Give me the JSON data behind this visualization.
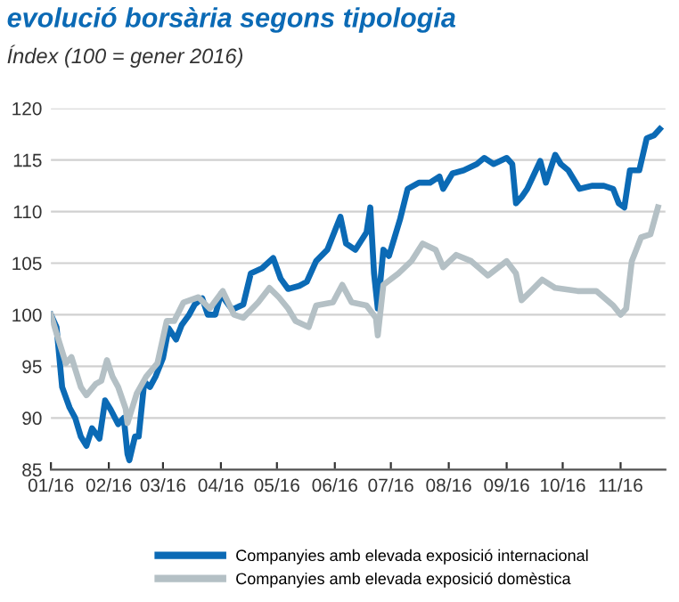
{
  "chart_data": {
    "type": "line",
    "title": "evolució borsària segons tipologia",
    "subtitle": "Índex (100 = gener 2016)",
    "xlim": [
      "2016-01-01",
      "2016-11-25"
    ],
    "xticks": [
      {
        "value": "2016-01-01",
        "label": "01/16"
      },
      {
        "value": "2016-02-01",
        "label": "02/16"
      },
      {
        "value": "2016-03-01",
        "label": "03/16"
      },
      {
        "value": "2016-04-01",
        "label": "04/16"
      },
      {
        "value": "2016-05-01",
        "label": "05/16"
      },
      {
        "value": "2016-06-01",
        "label": "06/16"
      },
      {
        "value": "2016-07-01",
        "label": "07/16"
      },
      {
        "value": "2016-08-01",
        "label": "08/16"
      },
      {
        "value": "2016-09-01",
        "label": "09/16"
      },
      {
        "value": "2016-10-01",
        "label": "10/16"
      },
      {
        "value": "2016-11-01",
        "label": "11/16"
      }
    ],
    "ylim": [
      85,
      120
    ],
    "yticks": [
      85,
      90,
      95,
      100,
      105,
      110,
      115,
      120
    ],
    "grid": "y",
    "legend": "bottom",
    "marker": "none",
    "line_style": "solid",
    "series": [
      {
        "name": "Companyies amb elevada exposició internacional",
        "color": "#0b6ab5",
        "x": [
          "2016-01-01",
          "2016-01-04",
          "2016-01-07",
          "2016-01-11",
          "2016-01-14",
          "2016-01-17",
          "2016-01-20",
          "2016-01-23",
          "2016-01-27",
          "2016-01-30",
          "2016-02-02",
          "2016-02-06",
          "2016-02-09",
          "2016-02-11",
          "2016-02-12",
          "2016-02-15",
          "2016-02-17",
          "2016-02-20",
          "2016-02-23",
          "2016-02-26",
          "2016-03-01",
          "2016-03-04",
          "2016-03-08",
          "2016-03-11",
          "2016-03-15",
          "2016-03-18",
          "2016-03-22",
          "2016-03-25",
          "2016-03-29",
          "2016-04-01",
          "2016-04-07",
          "2016-04-13",
          "2016-04-17",
          "2016-04-23",
          "2016-04-29",
          "2016-05-03",
          "2016-05-07",
          "2016-05-13",
          "2016-05-17",
          "2016-05-22",
          "2016-05-28",
          "2016-06-04",
          "2016-06-07",
          "2016-06-12",
          "2016-06-18",
          "2016-06-20",
          "2016-06-22",
          "2016-06-24",
          "2016-06-27",
          "2016-06-30",
          "2016-07-03",
          "2016-07-06",
          "2016-07-10",
          "2016-07-16",
          "2016-07-22",
          "2016-07-27",
          "2016-07-29",
          "2016-08-03",
          "2016-08-09",
          "2016-08-16",
          "2016-08-20",
          "2016-08-25",
          "2016-09-01",
          "2016-09-04",
          "2016-09-06",
          "2016-09-09",
          "2016-09-12",
          "2016-09-19",
          "2016-09-22",
          "2016-09-27",
          "2016-09-30",
          "2016-10-04",
          "2016-10-10",
          "2016-10-17",
          "2016-10-23",
          "2016-10-28",
          "2016-10-31",
          "2016-11-03",
          "2016-11-06",
          "2016-11-11",
          "2016-11-15",
          "2016-11-19",
          "2016-11-22"
        ],
        "values": [
          100,
          98.8,
          93,
          91,
          90,
          88.2,
          87.3,
          89,
          88,
          91.7,
          90.8,
          89.4,
          90,
          86.5,
          85.9,
          88.2,
          88.2,
          93.5,
          93,
          94,
          95.8,
          98.7,
          97.6,
          99,
          100,
          101,
          101.6,
          100,
          100,
          102,
          100.5,
          101,
          104,
          104.5,
          105.5,
          103.5,
          102.5,
          102.8,
          103.2,
          105.2,
          106.3,
          109.5,
          106.9,
          106.3,
          108,
          110.4,
          104,
          100.6,
          106.3,
          105.7,
          107.5,
          109.3,
          112.2,
          112.8,
          112.8,
          113.4,
          112.2,
          113.7,
          114,
          114.6,
          115.2,
          114.6,
          115.2,
          114.6,
          110.8,
          111.4,
          112.2,
          114.9,
          112.8,
          115.5,
          114.6,
          114,
          112.2,
          112.5,
          112.5,
          112.2,
          110.8,
          110.4,
          114,
          114,
          117.1,
          117.4,
          118
        ]
      },
      {
        "name": "Companyies amb elevada exposició domèstica",
        "color": "#b4c0c5",
        "x": [
          "2016-01-01",
          "2016-01-04",
          "2016-01-09",
          "2016-01-12",
          "2016-01-17",
          "2016-01-20",
          "2016-01-25",
          "2016-01-28",
          "2016-01-31",
          "2016-02-03",
          "2016-02-06",
          "2016-02-10",
          "2016-02-11",
          "2016-02-16",
          "2016-02-21",
          "2016-02-27",
          "2016-03-03",
          "2016-03-07",
          "2016-03-12",
          "2016-03-20",
          "2016-03-26",
          "2016-04-02",
          "2016-04-08",
          "2016-04-13",
          "2016-04-21",
          "2016-04-27",
          "2016-05-02",
          "2016-05-07",
          "2016-05-11",
          "2016-05-18",
          "2016-05-22",
          "2016-05-31",
          "2016-06-05",
          "2016-06-10",
          "2016-06-18",
          "2016-06-23",
          "2016-06-24",
          "2016-06-27",
          "2016-07-05",
          "2016-07-12",
          "2016-07-18",
          "2016-07-25",
          "2016-07-29",
          "2016-08-05",
          "2016-08-13",
          "2016-08-22",
          "2016-09-01",
          "2016-09-06",
          "2016-09-09",
          "2016-09-14",
          "2016-09-20",
          "2016-09-27",
          "2016-10-09",
          "2016-10-19",
          "2016-10-28",
          "2016-11-01",
          "2016-11-04",
          "2016-11-07",
          "2016-11-12",
          "2016-11-17",
          "2016-11-21"
        ],
        "values": [
          100,
          98.2,
          95.3,
          95.9,
          93,
          92.2,
          93.3,
          93.6,
          95.6,
          94,
          93,
          90.9,
          89.5,
          92.4,
          94,
          95.3,
          99.4,
          99.4,
          101.2,
          101.7,
          100.6,
          102.3,
          100,
          99.7,
          101.2,
          102.6,
          101.7,
          100.6,
          99.4,
          98.8,
          100.9,
          101.2,
          102.9,
          101.2,
          100.9,
          99.7,
          98,
          102.9,
          104,
          105.2,
          106.9,
          106.3,
          104.6,
          105.8,
          105.2,
          103.8,
          105.2,
          104,
          101.4,
          102.3,
          103.4,
          102.6,
          102.3,
          102.3,
          100.9,
          100,
          100.6,
          105.2,
          107.5,
          107.8,
          110.4
        ]
      }
    ]
  }
}
